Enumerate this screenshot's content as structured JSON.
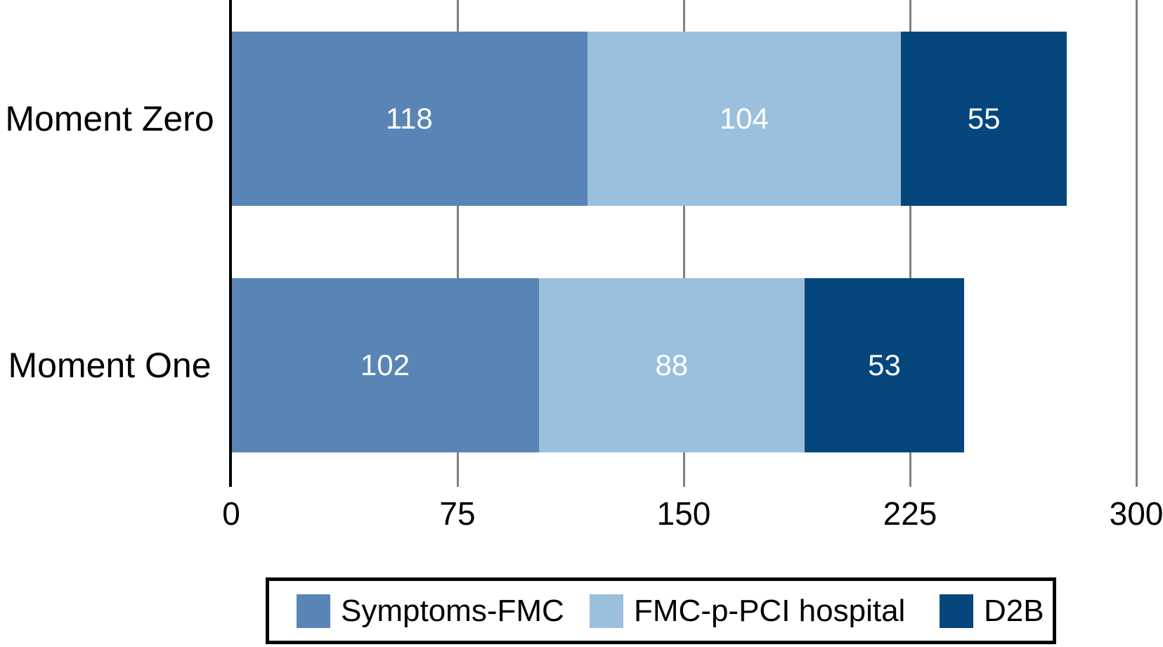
{
  "chart_data": {
    "type": "bar",
    "orientation": "horizontal",
    "stacked": true,
    "title": "",
    "xlabel": "",
    "ylabel": "",
    "categories": [
      "Moment Zero",
      "Moment One"
    ],
    "series": [
      {
        "name": "Symptoms-FMC",
        "color": "#5885B5",
        "values": [
          118,
          102
        ]
      },
      {
        "name": "FMC-p-PCI hospital",
        "color": "#9AC0DD",
        "values": [
          104,
          88
        ]
      },
      {
        "name": "D2B",
        "color": "#05467C",
        "values": [
          55,
          53
        ]
      }
    ],
    "totals": [
      277,
      243
    ],
    "xlim": [
      0,
      300
    ],
    "xticks": [
      "0",
      "75",
      "150",
      "225",
      "300"
    ],
    "xtick_values": [
      0,
      75,
      150,
      225,
      300
    ],
    "grid": true,
    "value_labels": true,
    "legend_position": "bottom"
  },
  "colors": {
    "background": "#FFFFFF",
    "gridline": "#808080",
    "axis": "#000000",
    "value_label_text": "#FFFFFF",
    "tick_text": "#000000",
    "category_text": "#000000",
    "legend_border": "#000000"
  }
}
